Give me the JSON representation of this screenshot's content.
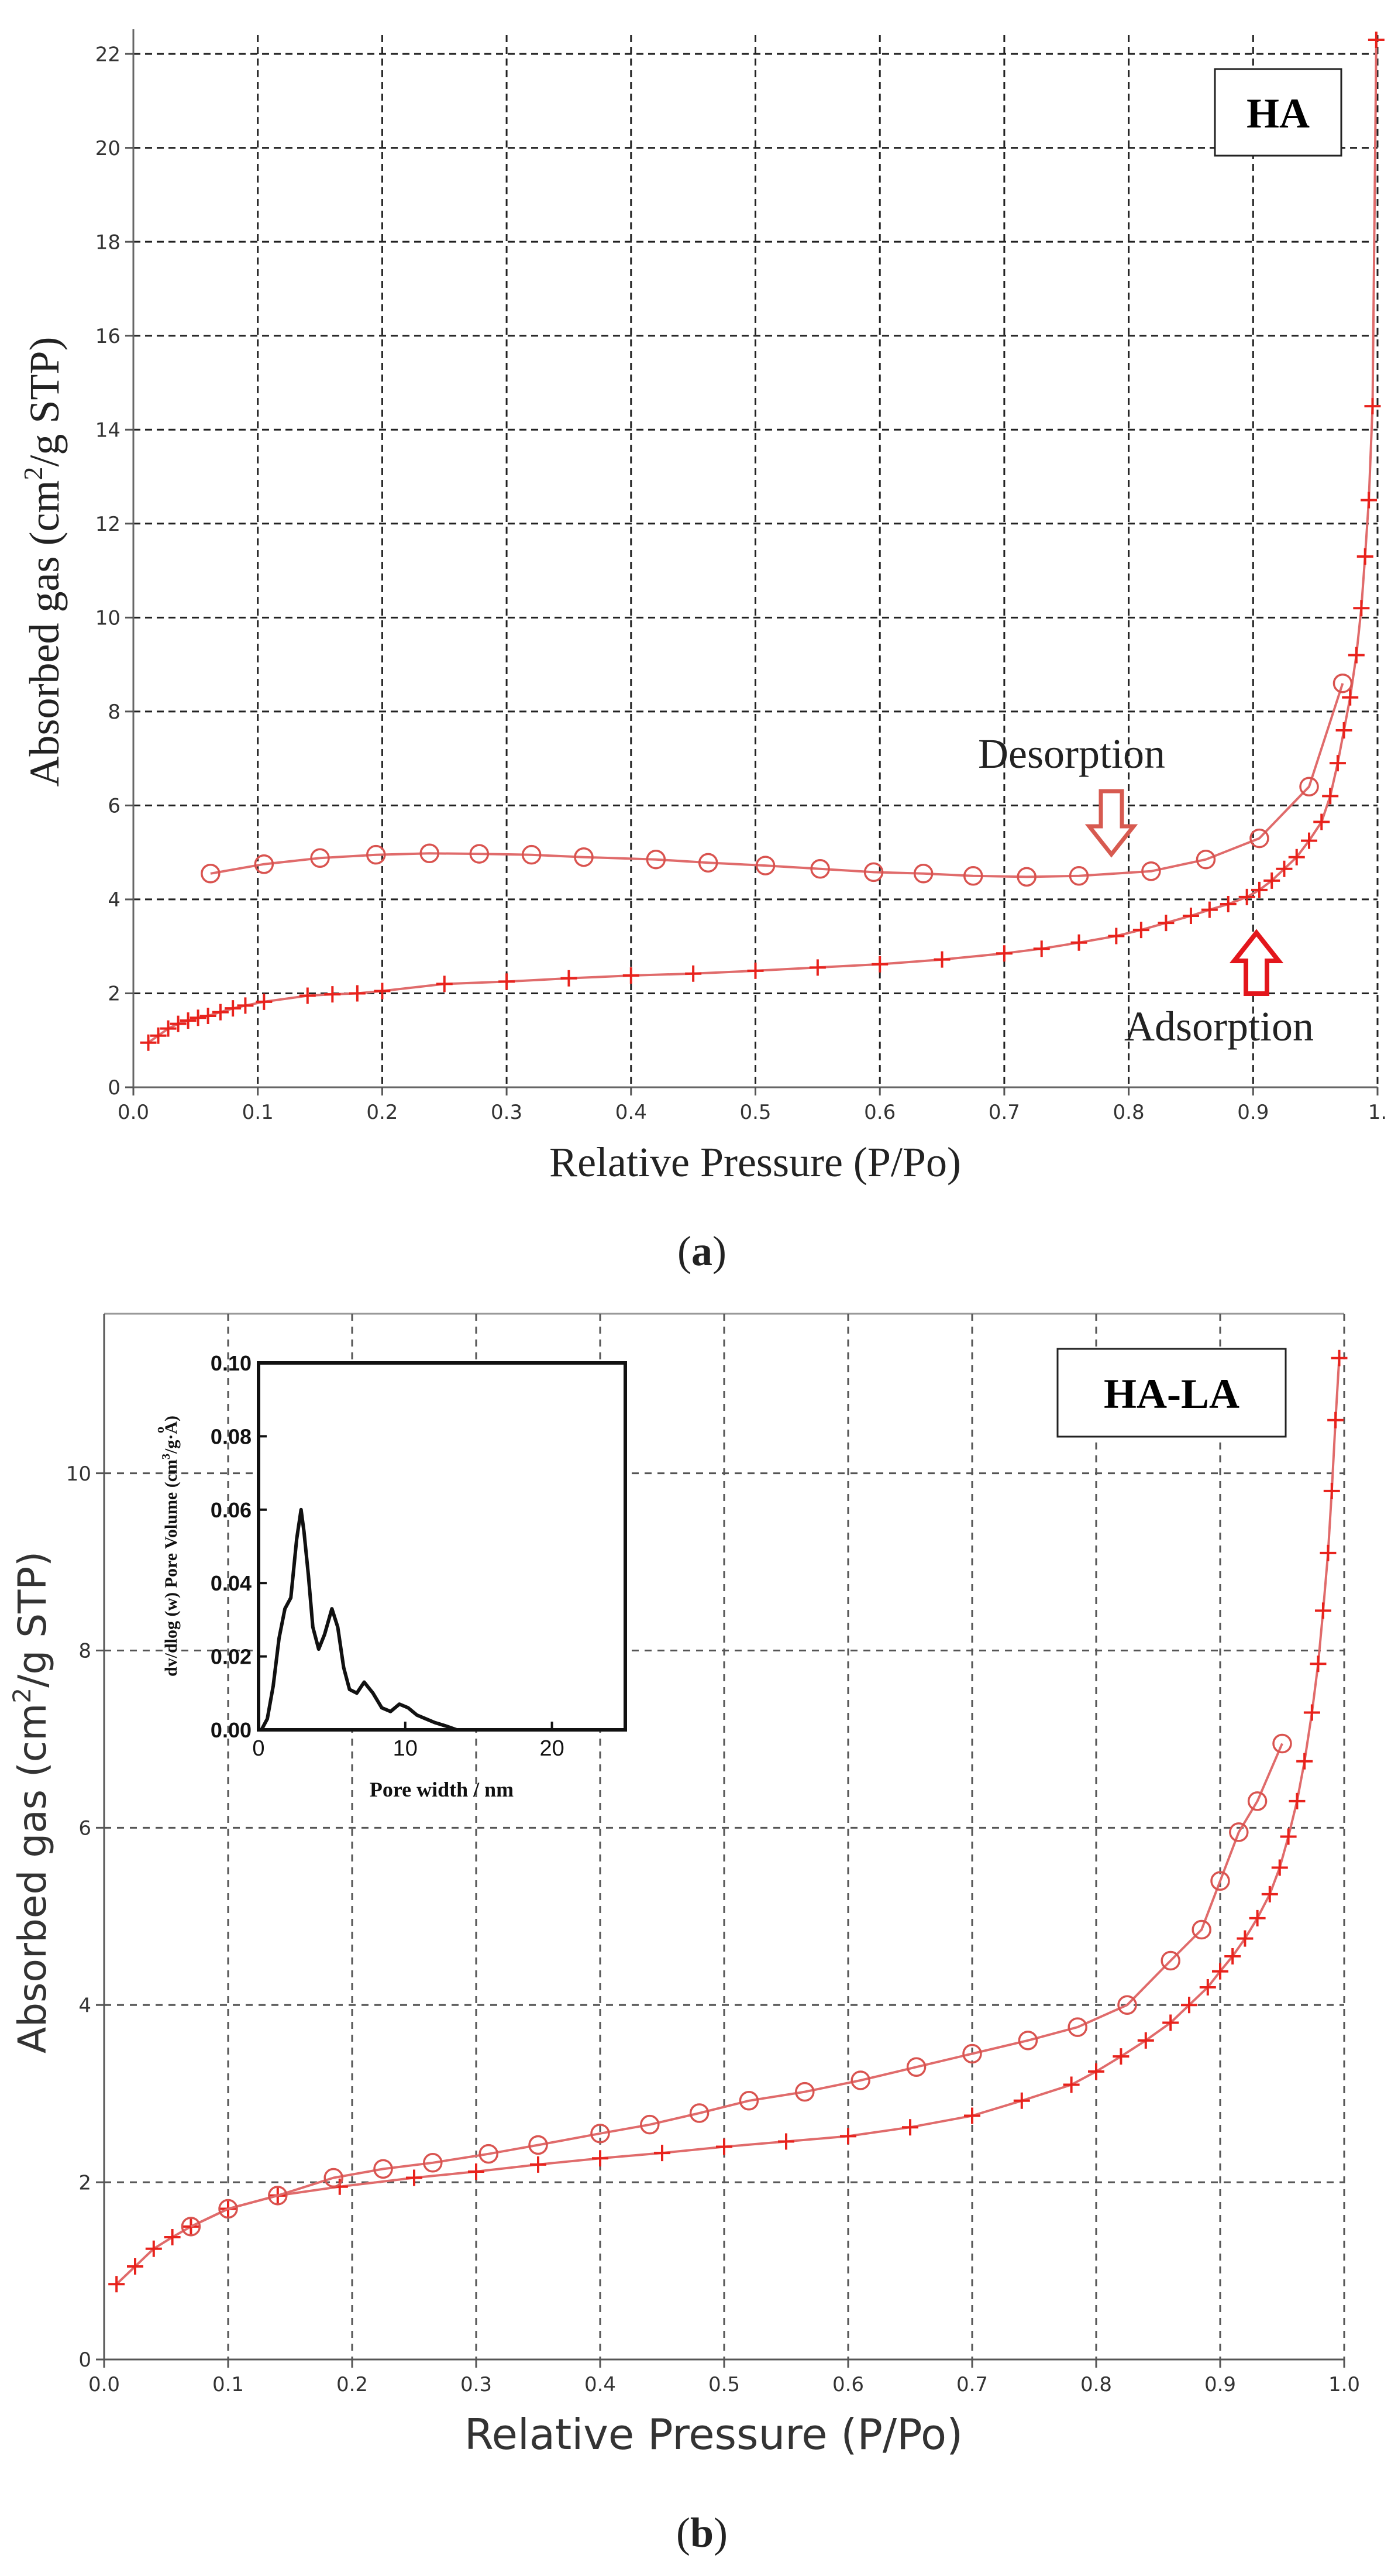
{
  "colors": {
    "curve": "#e06b6b",
    "adsorption_marker": "#e8221c",
    "desorption_marker": "#d9534f",
    "arrow_desorption": "#d75a50",
    "arrow_adsorption": "#e3161c",
    "grid": "#222222",
    "grid_b": "#555555",
    "inset_line": "#111111"
  },
  "chart_data": [
    {
      "type": "line",
      "panel": "(a)",
      "panel_letter": "a",
      "label_box": "HA",
      "xlabel": "Relative Pressure (P/Po)",
      "ylabel_main": "Absorbed gas (cm",
      "ylabel_sup": "2",
      "ylabel_rest": "/g STP)",
      "xlim": [
        0,
        1
      ],
      "ylim": [
        0,
        22.4
      ],
      "grid": true,
      "x_ticks": [
        0.0,
        0.1,
        0.2,
        0.3,
        0.4,
        0.5,
        0.6,
        0.7,
        0.8,
        0.9,
        1.0
      ],
      "x_tick_labels": [
        "0.0",
        "0.1",
        "0.2",
        "0.3",
        "0.4",
        "0.5",
        "0.6",
        "0.7",
        "0.8",
        "0.9",
        "1."
      ],
      "y_ticks": [
        0,
        2,
        4,
        6,
        8,
        10,
        12,
        14,
        16,
        18,
        20,
        22
      ],
      "y_tick_labels": [
        "0",
        "2",
        "4",
        "6",
        "8",
        "10",
        "12",
        "14",
        "16",
        "18",
        "20",
        "22"
      ],
      "annotations": {
        "desorption": "Desorption",
        "adsorption": "Adsorption"
      },
      "series": [
        {
          "name": "Adsorption",
          "marker": "plus",
          "x": [
            0.012,
            0.02,
            0.028,
            0.036,
            0.044,
            0.052,
            0.06,
            0.07,
            0.08,
            0.09,
            0.105,
            0.14,
            0.16,
            0.18,
            0.2,
            0.25,
            0.3,
            0.35,
            0.4,
            0.45,
            0.5,
            0.55,
            0.6,
            0.65,
            0.7,
            0.73,
            0.76,
            0.79,
            0.81,
            0.83,
            0.85,
            0.865,
            0.88,
            0.895,
            0.905,
            0.915,
            0.925,
            0.935,
            0.945,
            0.955,
            0.962,
            0.968,
            0.973,
            0.978,
            0.983,
            0.987,
            0.99,
            0.993,
            0.996,
            0.999
          ],
          "y": [
            0.95,
            1.1,
            1.25,
            1.35,
            1.42,
            1.48,
            1.52,
            1.6,
            1.68,
            1.74,
            1.82,
            1.95,
            1.98,
            2.0,
            2.05,
            2.2,
            2.25,
            2.32,
            2.38,
            2.42,
            2.48,
            2.55,
            2.62,
            2.72,
            2.85,
            2.95,
            3.08,
            3.22,
            3.35,
            3.5,
            3.65,
            3.78,
            3.9,
            4.05,
            4.2,
            4.4,
            4.65,
            4.9,
            5.25,
            5.65,
            6.2,
            6.9,
            7.6,
            8.3,
            9.2,
            10.2,
            11.3,
            12.5,
            14.5,
            22.3
          ]
        },
        {
          "name": "Desorption",
          "marker": "circle",
          "x": [
            0.062,
            0.105,
            0.15,
            0.195,
            0.238,
            0.278,
            0.32,
            0.362,
            0.42,
            0.462,
            0.508,
            0.552,
            0.595,
            0.635,
            0.675,
            0.718,
            0.76,
            0.818,
            0.862,
            0.905,
            0.945,
            0.972
          ],
          "y": [
            4.55,
            4.75,
            4.88,
            4.95,
            4.98,
            4.97,
            4.95,
            4.9,
            4.85,
            4.78,
            4.72,
            4.65,
            4.58,
            4.55,
            4.5,
            4.48,
            4.5,
            4.6,
            4.85,
            5.3,
            6.4,
            8.6
          ]
        }
      ]
    },
    {
      "type": "line",
      "panel": "(b)",
      "panel_letter": "b",
      "label_box": "HA-LA",
      "xlabel": "Relative Pressure (P/Po)",
      "ylabel_main": "Absorbed gas (cm",
      "ylabel_sup": "2",
      "ylabel_rest": "/g STP)",
      "xlim": [
        0,
        1
      ],
      "ylim": [
        0,
        11.8
      ],
      "grid": true,
      "x_ticks": [
        0.0,
        0.1,
        0.2,
        0.3,
        0.4,
        0.5,
        0.6,
        0.7,
        0.8,
        0.9,
        1.0
      ],
      "x_tick_labels": [
        "0.0",
        "0.1",
        "0.2",
        "0.3",
        "0.4",
        "0.5",
        "0.6",
        "0.7",
        "0.8",
        "0.9",
        "1.0"
      ],
      "y_ticks": [
        0,
        2,
        4,
        6,
        8,
        10
      ],
      "y_tick_labels": [
        "0",
        "2",
        "4",
        "6",
        "8",
        "10"
      ],
      "series": [
        {
          "name": "Adsorption",
          "marker": "plus",
          "x": [
            0.01,
            0.025,
            0.04,
            0.055,
            0.07,
            0.1,
            0.14,
            0.19,
            0.25,
            0.3,
            0.35,
            0.4,
            0.45,
            0.5,
            0.55,
            0.6,
            0.65,
            0.7,
            0.74,
            0.78,
            0.8,
            0.82,
            0.84,
            0.86,
            0.875,
            0.89,
            0.9,
            0.91,
            0.92,
            0.93,
            0.94,
            0.948,
            0.955,
            0.962,
            0.968,
            0.974,
            0.979,
            0.983,
            0.987,
            0.99,
            0.993,
            0.996
          ],
          "y": [
            0.85,
            1.05,
            1.25,
            1.38,
            1.5,
            1.7,
            1.85,
            1.95,
            2.05,
            2.12,
            2.2,
            2.27,
            2.33,
            2.4,
            2.46,
            2.52,
            2.62,
            2.75,
            2.92,
            3.1,
            3.25,
            3.42,
            3.6,
            3.8,
            4.0,
            4.2,
            4.38,
            4.55,
            4.75,
            4.98,
            5.25,
            5.55,
            5.9,
            6.3,
            6.75,
            7.3,
            7.85,
            8.45,
            9.1,
            9.8,
            10.6,
            11.3
          ]
        },
        {
          "name": "Desorption",
          "marker": "circle",
          "x": [
            0.07,
            0.1,
            0.14,
            0.185,
            0.225,
            0.265,
            0.31,
            0.35,
            0.4,
            0.44,
            0.48,
            0.52,
            0.565,
            0.61,
            0.655,
            0.7,
            0.745,
            0.785,
            0.825,
            0.86,
            0.885,
            0.9,
            0.915,
            0.93,
            0.95
          ],
          "y": [
            1.5,
            1.7,
            1.85,
            2.05,
            2.15,
            2.22,
            2.32,
            2.42,
            2.55,
            2.65,
            2.78,
            2.92,
            3.02,
            3.15,
            3.3,
            3.45,
            3.6,
            3.75,
            4.0,
            4.5,
            4.85,
            5.4,
            5.95,
            6.3,
            6.95
          ]
        }
      ],
      "inset": {
        "type": "line",
        "xlabel": "Pore width / nm",
        "ylabel_main": "dv/dlog (w) Pore Volume (cm",
        "ylabel_sup": "3",
        "ylabel_rest": "/g·A)",
        "ylabel_degree": "o",
        "xlim": [
          0,
          25
        ],
        "ylim": [
          0,
          0.1
        ],
        "x_ticks": [
          0,
          10,
          20
        ],
        "x_tick_labels": [
          "0",
          "10",
          "20"
        ],
        "y_ticks": [
          0.0,
          0.02,
          0.04,
          0.06,
          0.08,
          0.1
        ],
        "y_tick_labels": [
          "0.00",
          "0.02",
          "0.04",
          "0.06",
          "0.08",
          "0.10"
        ],
        "x": [
          0.2,
          0.6,
          1.0,
          1.4,
          1.8,
          2.2,
          2.6,
          2.9,
          3.1,
          3.4,
          3.7,
          4.1,
          4.5,
          5.0,
          5.4,
          5.8,
          6.2,
          6.7,
          7.2,
          7.8,
          8.4,
          9.0,
          9.6,
          10.2,
          10.8,
          11.4,
          12.0,
          12.8,
          13.5
        ],
        "y": [
          0.0,
          0.003,
          0.012,
          0.025,
          0.033,
          0.036,
          0.052,
          0.06,
          0.054,
          0.042,
          0.028,
          0.022,
          0.026,
          0.033,
          0.028,
          0.017,
          0.011,
          0.01,
          0.013,
          0.01,
          0.006,
          0.005,
          0.007,
          0.006,
          0.004,
          0.003,
          0.002,
          0.001,
          0.0
        ]
      }
    }
  ]
}
